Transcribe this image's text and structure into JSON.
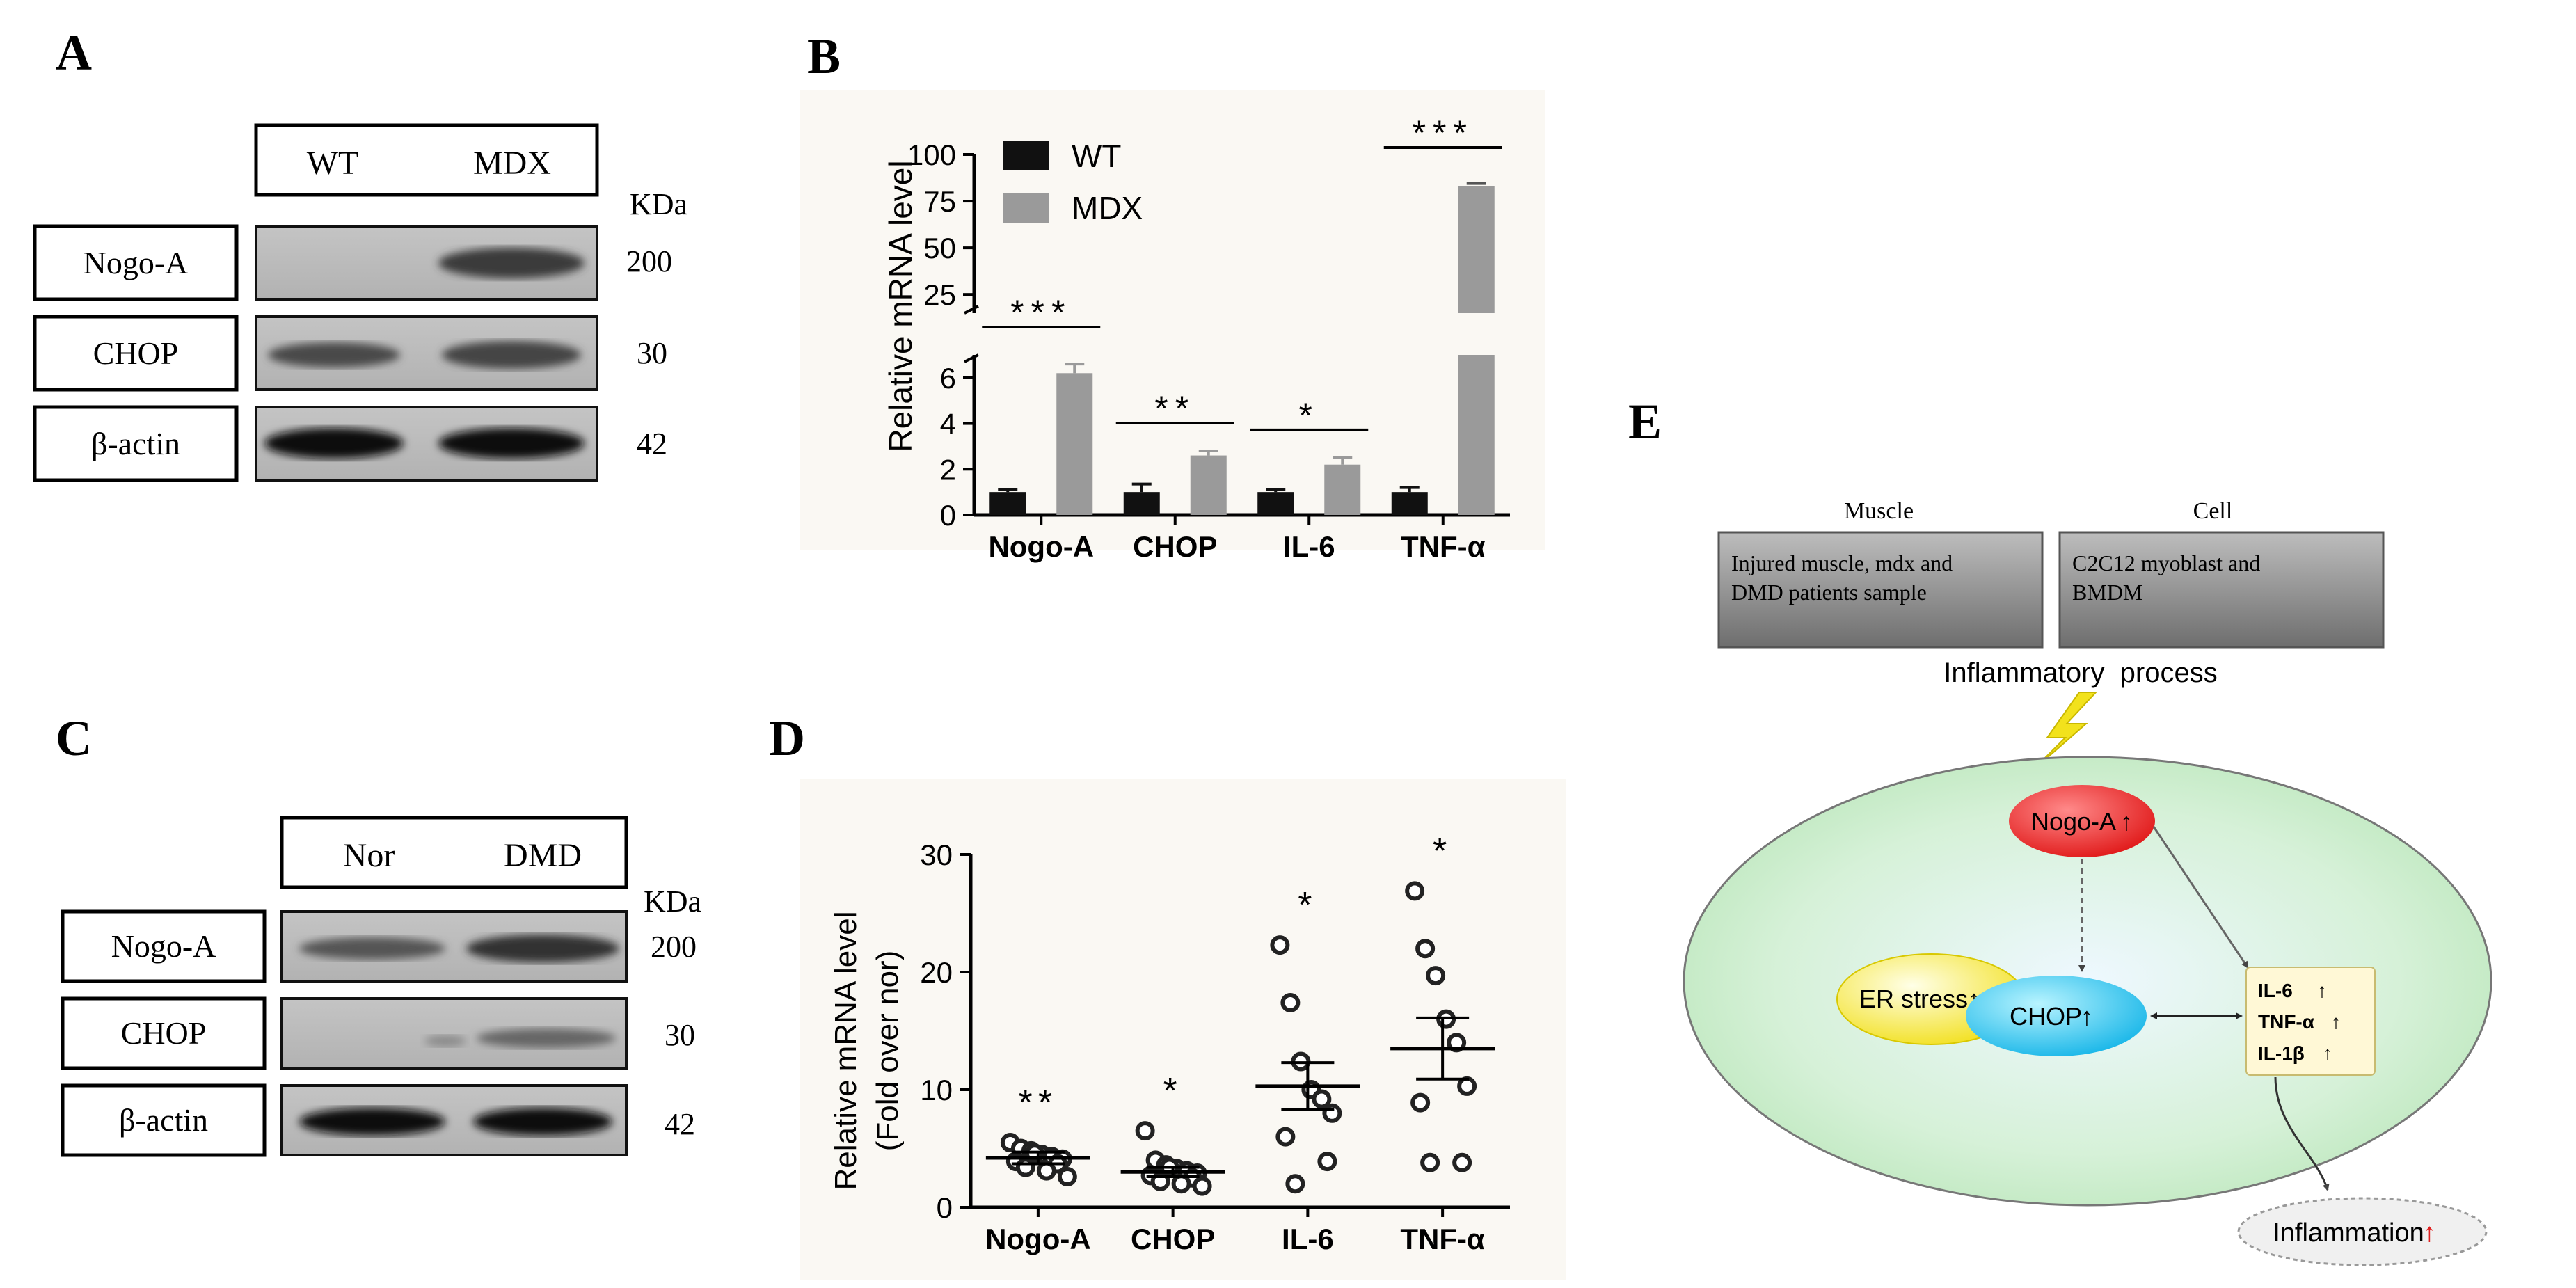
{
  "panel_labels": {
    "a": "A",
    "b": "B",
    "c": "C",
    "d": "D",
    "e": "E"
  },
  "panel_a": {
    "lanes": [
      "WT",
      "MDX"
    ],
    "unit": "KDa",
    "bands": [
      {
        "label": "Nogo-A",
        "mw": "200"
      },
      {
        "label": "CHOP",
        "mw": "30"
      },
      {
        "label": "β-actin",
        "mw": "42"
      }
    ]
  },
  "panel_c": {
    "lanes": [
      "Nor",
      "DMD"
    ],
    "unit": "KDa",
    "bands": [
      {
        "label": "Nogo-A",
        "mw": "200"
      },
      {
        "label": "CHOP",
        "mw": "30"
      },
      {
        "label": "β-actin",
        "mw": "42"
      }
    ]
  },
  "chart_data": [
    {
      "type": "bar",
      "panel": "B",
      "title": "",
      "xlabel": "",
      "ylabel": "Relative mRNA level",
      "categories": [
        "Nogo-A",
        "CHOP",
        "IL-6",
        "TNF-α"
      ],
      "series": [
        {
          "name": "WT",
          "color": "#111111",
          "values": [
            1.0,
            1.0,
            1.0,
            1.0
          ],
          "errors": [
            0.1,
            0.35,
            0.1,
            0.2
          ]
        },
        {
          "name": "MDX",
          "color": "#9a9a9a",
          "values": [
            6.2,
            2.6,
            2.2,
            83
          ],
          "errors": [
            0.4,
            0.2,
            0.3,
            1.5
          ]
        }
      ],
      "significance": [
        "***",
        "**",
        "*",
        "***"
      ],
      "y_axis_broken": true,
      "ylim_lower": [
        0,
        7
      ],
      "ylim_upper": [
        15,
        100
      ],
      "yticks_lower": [
        "0",
        "2",
        "4",
        "6"
      ],
      "yticks_upper": [
        "25",
        "50",
        "75",
        "100"
      ],
      "legend_position": "top-left"
    },
    {
      "type": "scatter",
      "panel": "D",
      "title": "",
      "xlabel": "",
      "ylabel": "Relative mRNA level",
      "ylabel2": "(Fold over nor)",
      "categories": [
        "Nogo-A",
        "CHOP",
        "IL-6",
        "TNF-α"
      ],
      "ylim": [
        0,
        30
      ],
      "yticks": [
        "0",
        "10",
        "20",
        "30"
      ],
      "groups": [
        {
          "name": "Nogo-A",
          "mean": 4.2,
          "sem": 0.5,
          "sig": "**",
          "points": [
            5.5,
            5.0,
            4.8,
            4.5,
            4.3,
            4.1,
            3.9,
            3.7,
            3.4,
            3.1,
            2.6,
            4.6
          ]
        },
        {
          "name": "CHOP",
          "mean": 3.0,
          "sem": 0.4,
          "sig": "*",
          "points": [
            6.5,
            4.0,
            3.6,
            3.3,
            3.1,
            2.9,
            2.7,
            2.5,
            2.2,
            2.0,
            1.8,
            3.4
          ]
        },
        {
          "name": "IL-6",
          "mean": 10.3,
          "sem": 2.0,
          "sig": "*",
          "points": [
            22.3,
            17.4,
            12.4,
            10.0,
            9.2,
            8.0,
            6.0,
            3.9,
            2.0
          ]
        },
        {
          "name": "TNF-α",
          "mean": 13.5,
          "sem": 2.6,
          "sig": "*",
          "points": [
            26.9,
            22.0,
            19.7,
            16.0,
            14.0,
            10.3,
            8.9,
            3.8,
            3.8
          ]
        }
      ]
    }
  ],
  "panel_e": {
    "muscle_header": "Muscle",
    "muscle_line1": "Injured muscle, mdx and",
    "muscle_line2": "DMD patients sample",
    "cell_header": "Cell",
    "cell_line1": "C2C12 myoblast and",
    "cell_line2": "BMDM",
    "process": "Inflammatory  process",
    "nogo": "Nogo-A",
    "er": "ER stress",
    "chop": "CHOP",
    "il6": "IL-6",
    "tnf": "TNF-α",
    "il1": "IL-1β",
    "inflammation": "Inflammation",
    "up_arrow": "↑",
    "arrow_color": "#e02020"
  }
}
